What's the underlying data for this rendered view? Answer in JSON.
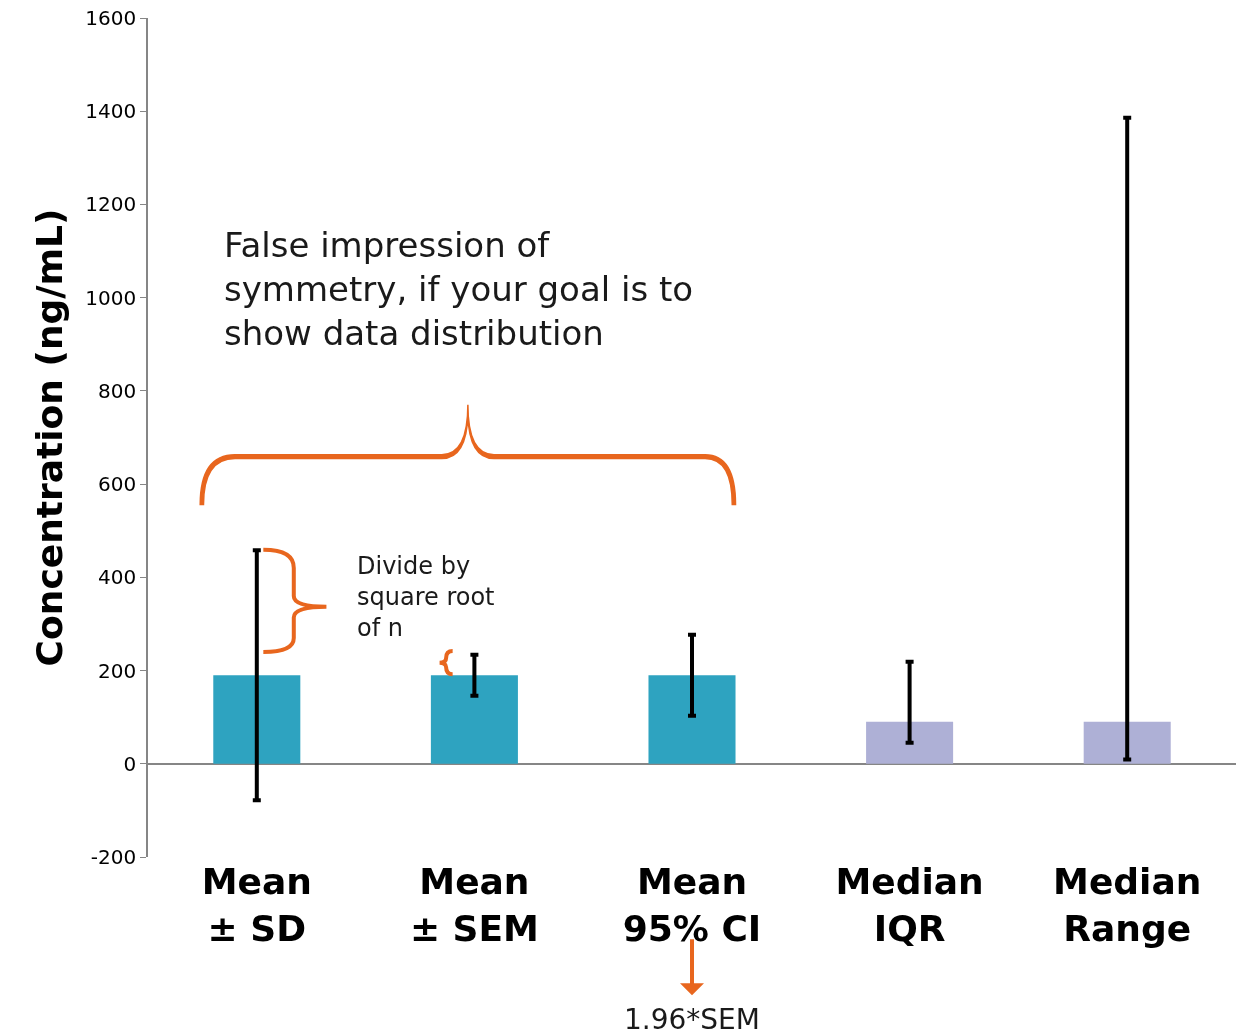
{
  "chart_data": {
    "type": "bar",
    "ylabel": "Concentration (ng/mL)",
    "categories": [
      "Mean\n± SD",
      "Mean\n± SEM",
      "Mean\n95% CI",
      "Median\nIQR",
      "Median\nRange"
    ],
    "values": [
      190,
      190,
      190,
      90,
      90
    ],
    "colors": [
      "#2ea3c0",
      "#2ea3c0",
      "#2ea3c0",
      "#aeb0d6",
      "#aeb0d6"
    ],
    "errors": [
      268,
      44,
      87,
      [
        45,
        219
      ],
      [
        9,
        1386
      ]
    ],
    "ylim": [
      -200,
      1600
    ],
    "yticks": [
      -200,
      0,
      200,
      400,
      600,
      800,
      1000,
      1200,
      1400,
      1600
    ],
    "annotations": [
      "False impression of\nsymmetry, if your goal is to\nshow data distribution",
      "Divide by\nsquare root\nof n",
      "1.96*SEM"
    ]
  }
}
